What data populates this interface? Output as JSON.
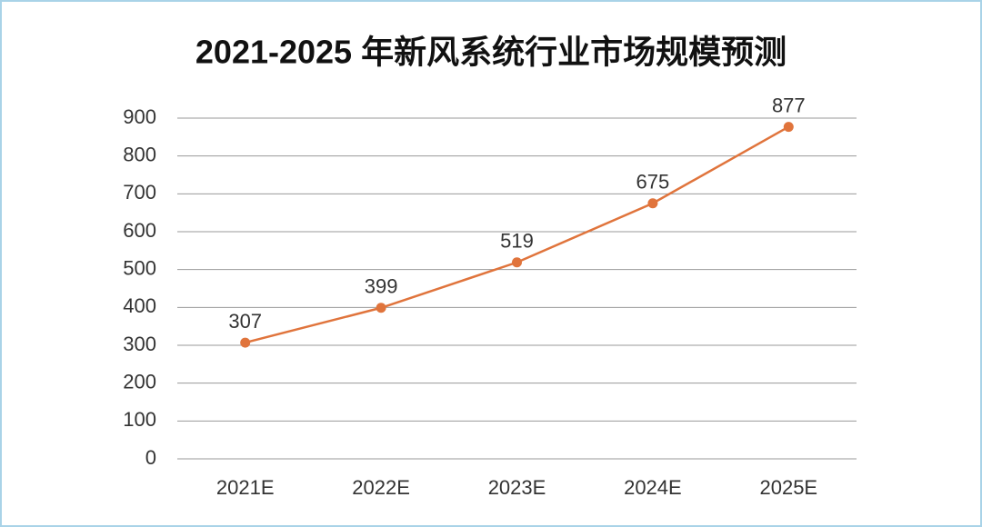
{
  "chart_data": {
    "type": "line",
    "title": "2021-2025 年新风系统行业市场规模预测",
    "categories": [
      "2021E",
      "2022E",
      "2023E",
      "2024E",
      "2025E"
    ],
    "values": [
      307,
      399,
      519,
      675,
      877
    ],
    "color": "#e0743c",
    "ylim": [
      0,
      900
    ],
    "yticks": [
      0,
      100,
      200,
      300,
      400,
      500,
      600,
      700,
      800,
      900
    ],
    "grid": true
  }
}
